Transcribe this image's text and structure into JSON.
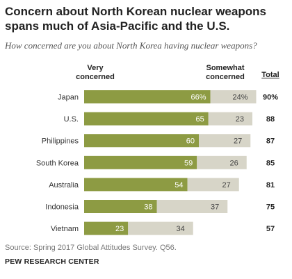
{
  "title": "Concern about North Korean nuclear weapons spans much of Asia-Pacific and the U.S.",
  "subtitle": "How concerned are you about North Korea having nuclear weapons?",
  "source": "Source: Spring 2017 Global Attitudes Survey. Q56.",
  "brand": "PEW RESEARCH CENTER",
  "colors": {
    "very": "#8d9b43",
    "somewhat": "#d7d5c8",
    "very_label": "#ffffff",
    "somewhat_label": "#444444"
  },
  "chart_data": {
    "type": "bar",
    "orientation": "horizontal",
    "stacked": true,
    "categories": [
      "Japan",
      "U.S.",
      "Philippines",
      "South Korea",
      "Australia",
      "Indonesia",
      "Vietnam"
    ],
    "series": [
      {
        "name": "Very concerned",
        "values": [
          66,
          65,
          60,
          59,
          54,
          38,
          23
        ],
        "labels": [
          "66%",
          "65",
          "60",
          "59",
          "54",
          "38",
          "23"
        ]
      },
      {
        "name": "Somewhat concerned",
        "values": [
          24,
          23,
          27,
          26,
          27,
          37,
          34
        ],
        "labels": [
          "24%",
          "23",
          "27",
          "26",
          "27",
          "37",
          "34"
        ]
      }
    ],
    "totals_header": "Total",
    "totals": [
      "90%",
      "88",
      "87",
      "85",
      "81",
      "75",
      "57"
    ],
    "xlim": [
      0,
      100
    ],
    "grid": false,
    "legend": "column headers above bars"
  }
}
